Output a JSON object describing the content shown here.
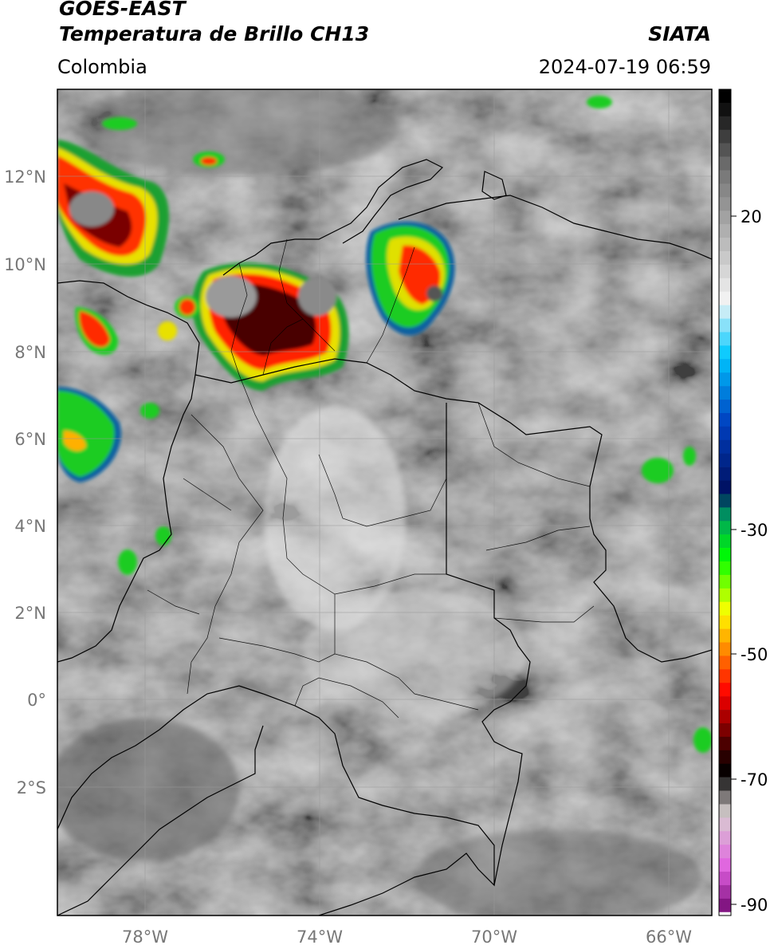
{
  "header": {
    "line1": "GOES-EAST",
    "line2": "Temperatura de Brillo CH13",
    "region": "Colombia",
    "org": "SIATA",
    "datetime": "2024-07-19 06:59"
  },
  "map": {
    "product": "Temperatura de Brillo CH13",
    "lat_labels": [
      "12°N",
      "10°N",
      "8°N",
      "6°N",
      "4°N",
      "2°N",
      "0°",
      "2°S"
    ],
    "lon_labels": [
      "78°W",
      "74°W",
      "70°W",
      "66°W"
    ]
  },
  "colorbar": {
    "tick_labels": [
      "20",
      "-30",
      "-50",
      "-70",
      "-90"
    ],
    "stops": [
      {
        "v": 30,
        "c": "#000000"
      },
      {
        "v": 20,
        "c": "#707070"
      },
      {
        "v": 0,
        "c": "#f4f4f4"
      },
      {
        "v": -8,
        "c": "#00c8ff"
      },
      {
        "v": -18,
        "c": "#0040c0"
      },
      {
        "v": -28,
        "c": "#001060"
      },
      {
        "v": -32,
        "c": "#00a060"
      },
      {
        "v": -38,
        "c": "#00ff00"
      },
      {
        "v": -46,
        "c": "#ffff00"
      },
      {
        "v": -52,
        "c": "#ff8000"
      },
      {
        "v": -58,
        "c": "#ff0000"
      },
      {
        "v": -66,
        "c": "#400000"
      },
      {
        "v": -70,
        "c": "#000000"
      },
      {
        "v": -76,
        "c": "#d8d0d0"
      },
      {
        "v": -84,
        "c": "#e060e0"
      },
      {
        "v": -90,
        "c": "#7a0f7a"
      }
    ]
  }
}
